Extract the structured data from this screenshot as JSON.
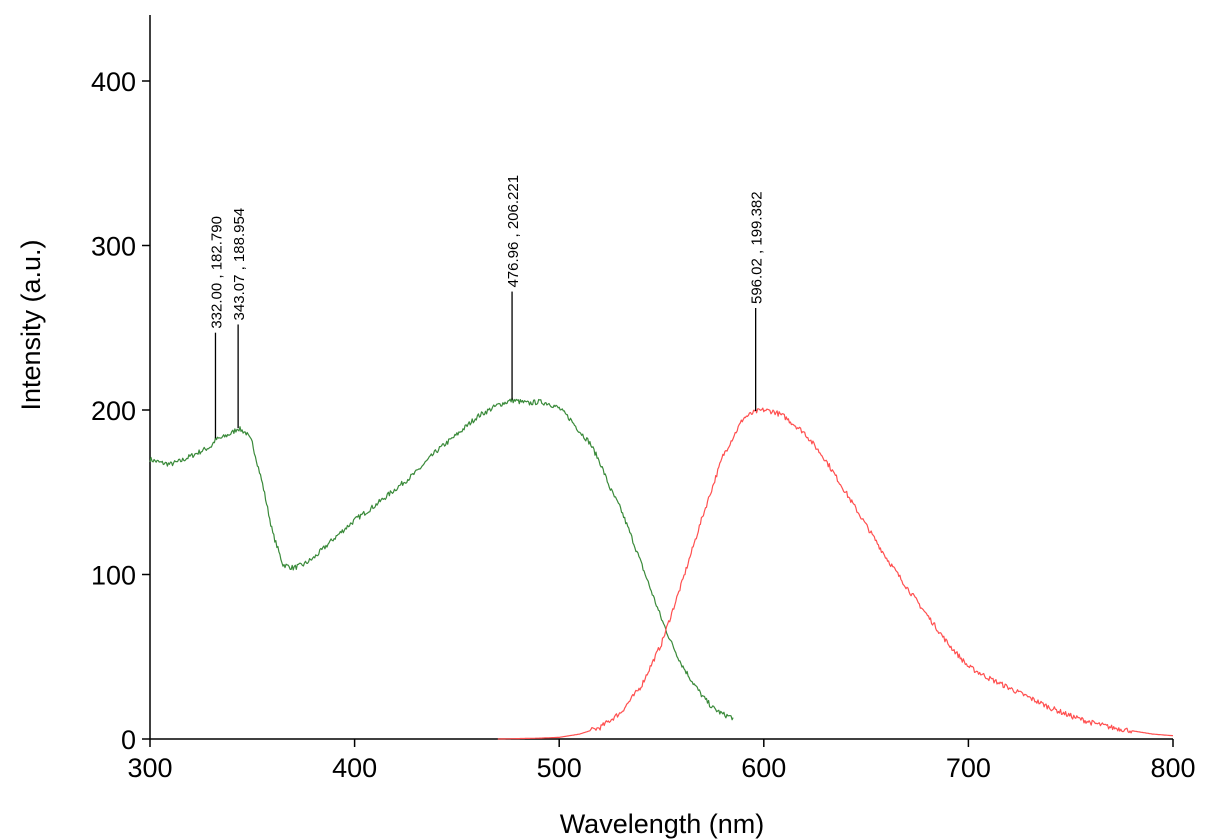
{
  "chart_data": {
    "type": "line",
    "xlabel": "Wavelength (nm)",
    "ylabel": "Intensity (a.u.)",
    "xlim": [
      300,
      800
    ],
    "ylim": [
      0,
      440
    ],
    "xticks": [
      300,
      400,
      500,
      600,
      700,
      800
    ],
    "yticks": [
      0,
      100,
      200,
      300,
      400
    ],
    "grid": false,
    "series": [
      {
        "color": "#3a8a3a",
        "x": [
          300,
          305,
          310,
          315,
          320,
          325,
          330,
          332,
          335,
          340,
          343,
          347,
          350,
          355,
          360,
          365,
          370,
          375,
          380,
          390,
          400,
          410,
          420,
          430,
          440,
          450,
          460,
          470,
          477,
          485,
          490,
          495,
          500,
          505,
          510,
          515,
          520,
          525,
          530,
          535,
          540,
          545,
          550,
          555,
          560,
          565,
          570,
          575,
          580,
          585
        ],
        "y": [
          170,
          168,
          167,
          169,
          172,
          175,
          178,
          182,
          183,
          186,
          189,
          186,
          180,
          155,
          125,
          106,
          104,
          106,
          110,
          122,
          133,
          142,
          152,
          162,
          175,
          185,
          196,
          203,
          206,
          204,
          205,
          204,
          201,
          195,
          187,
          180,
          168,
          152,
          140,
          124,
          107,
          90,
          73,
          58,
          45,
          35,
          26,
          19,
          15,
          13
        ]
      },
      {
        "color": "#ff5050",
        "x": [
          470,
          490,
          500,
          510,
          520,
          530,
          540,
          550,
          560,
          570,
          580,
          590,
          596,
          600,
          605,
          610,
          620,
          630,
          640,
          650,
          660,
          670,
          680,
          690,
          700,
          710,
          720,
          730,
          740,
          750,
          760,
          770,
          780,
          790,
          800
        ],
        "y": [
          0,
          0.5,
          1,
          3,
          7,
          16,
          32,
          58,
          95,
          135,
          172,
          195,
          199,
          200,
          199,
          196,
          186,
          170,
          150,
          130,
          110,
          92,
          75,
          58,
          44,
          37,
          31,
          25,
          19,
          14,
          10,
          7,
          5,
          3,
          2
        ]
      }
    ],
    "annotations": [
      {
        "x": 332.0,
        "y": 182.79,
        "text": "332.00 , 182.790",
        "tip_y": 247
      },
      {
        "x": 343.07,
        "y": 188.954,
        "text": "343.07 , 188.954",
        "tip_y": 252
      },
      {
        "x": 476.96,
        "y": 206.221,
        "text": "476.96 , 206.221",
        "tip_y": 272
      },
      {
        "x": 596.02,
        "y": 199.382,
        "text": "596.02 , 199.382",
        "tip_y": 262
      }
    ]
  }
}
